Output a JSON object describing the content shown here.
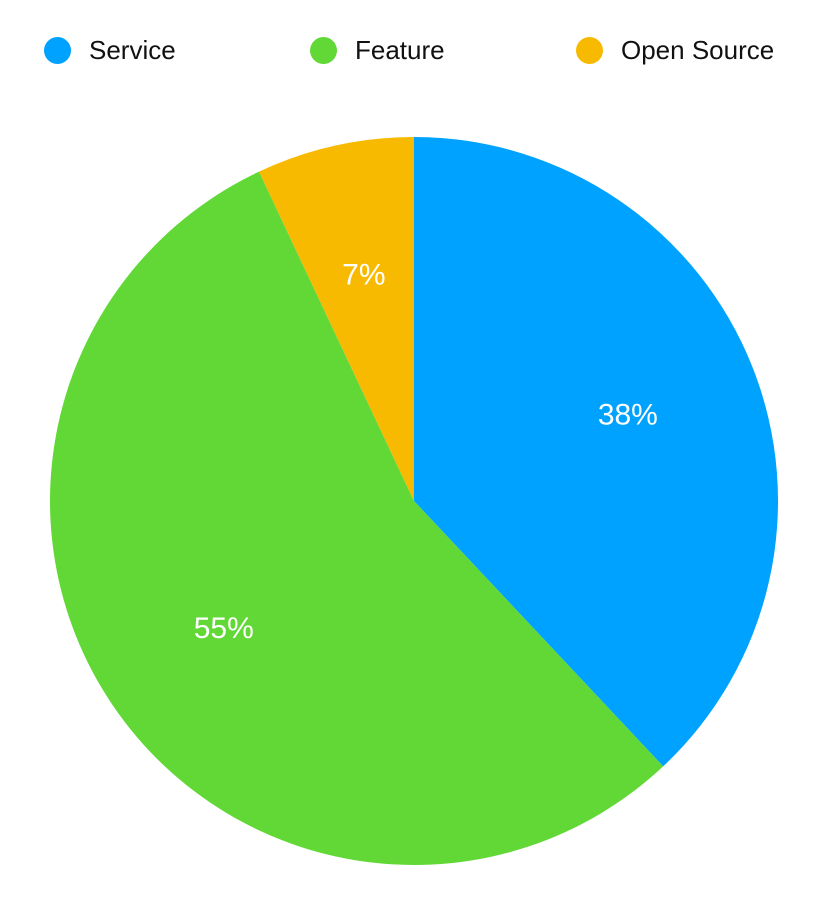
{
  "chart_data": {
    "type": "pie",
    "categories": [
      "Service",
      "Feature",
      "Open Source"
    ],
    "values": [
      38,
      55,
      7
    ],
    "labels": [
      "38%",
      "55%",
      "7%"
    ],
    "colors": [
      "#00a2ff",
      "#61d836",
      "#f8ba00"
    ],
    "legend_position": "top",
    "title": ""
  }
}
